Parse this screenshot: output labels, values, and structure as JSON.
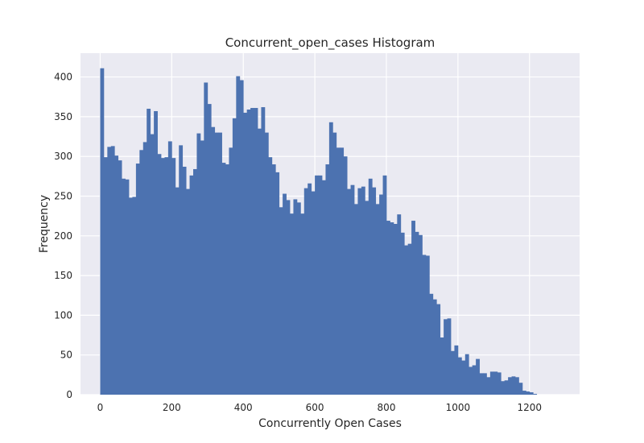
{
  "chart_data": {
    "type": "histogram",
    "title": "Concurrent_open_cases Histogram",
    "xlabel": "Concurrently Open Cases",
    "ylabel": "Frequency",
    "xlim": [
      -55,
      1340
    ],
    "ylim": [
      0,
      430
    ],
    "x_ticks": [
      0,
      200,
      400,
      600,
      800,
      1000,
      1200
    ],
    "y_ticks": [
      0,
      50,
      100,
      150,
      200,
      250,
      300,
      350,
      400
    ],
    "bin_start": 0,
    "bin_width": 10,
    "values": [
      411,
      299,
      312,
      313,
      301,
      295,
      272,
      271,
      248,
      249,
      291,
      308,
      318,
      360,
      328,
      357,
      303,
      298,
      299,
      319,
      298,
      261,
      314,
      287,
      259,
      276,
      284,
      329,
      320,
      393,
      366,
      337,
      330,
      330,
      292,
      290,
      311,
      348,
      401,
      396,
      355,
      359,
      361,
      361,
      335,
      362,
      330,
      299,
      290,
      280,
      236,
      253,
      245,
      228,
      246,
      242,
      228,
      260,
      266,
      256,
      276,
      276,
      270,
      290,
      343,
      330,
      311,
      311,
      300,
      259,
      264,
      240,
      260,
      262,
      244,
      272,
      261,
      240,
      252,
      276,
      219,
      217,
      215,
      227,
      204,
      188,
      190,
      219,
      205,
      201,
      176,
      175,
      127,
      120,
      114,
      72,
      95,
      96,
      55,
      62,
      47,
      43,
      51,
      35,
      37,
      45,
      27,
      27,
      22,
      29,
      29,
      28,
      17,
      18,
      22,
      23,
      22,
      15,
      5,
      4,
      3,
      1
    ],
    "bar_color": "#4c72b0",
    "background_color": "#eaeaf2",
    "grid": true
  }
}
